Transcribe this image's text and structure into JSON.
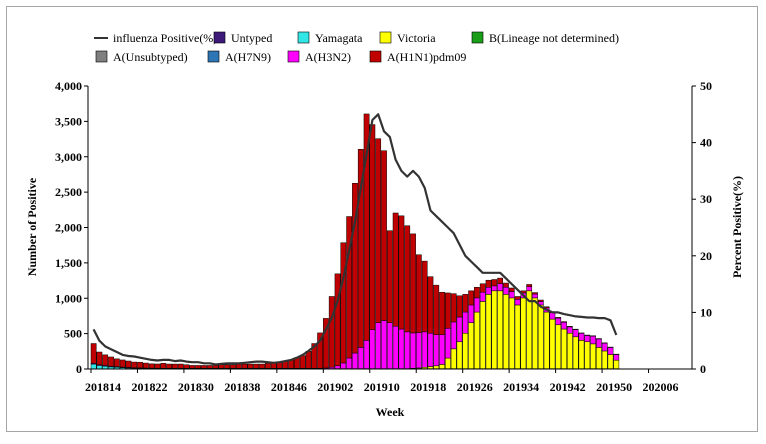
{
  "chart_data": {
    "type": "bar",
    "stacked": true,
    "xlabel": "Week",
    "ylabel": "Number of Positive",
    "y2label": "Percent Positive(%)",
    "ylim": [
      0,
      4000
    ],
    "y2lim": [
      0,
      50
    ],
    "yticks": [
      "0",
      "500",
      "1,000",
      "1,500",
      "2,000",
      "2,500",
      "3,000",
      "3,500",
      "4,000"
    ],
    "y2ticks": [
      "0",
      "10",
      "20",
      "30",
      "40",
      "50"
    ],
    "xticks": [
      "201814",
      "201822",
      "201830",
      "201838",
      "201846",
      "201902",
      "201910",
      "201918",
      "201926",
      "201934",
      "201942",
      "201950",
      "202006"
    ],
    "legend": [
      {
        "name": "influenza Positive(%)",
        "color": "#333333",
        "kind": "line"
      },
      {
        "name": "Untyped",
        "color": "#3d1a78",
        "kind": "box"
      },
      {
        "name": "Yamagata",
        "color": "#33e6e6",
        "kind": "box"
      },
      {
        "name": "Victoria",
        "color": "#ffff00",
        "kind": "box"
      },
      {
        "name": "B(Lineage not determined)",
        "color": "#1a9e1a",
        "kind": "box"
      },
      {
        "name": "A(Unsubtyped)",
        "color": "#7f7f7f",
        "kind": "box"
      },
      {
        "name": "A(H7N9)",
        "color": "#2e75b6",
        "kind": "box"
      },
      {
        "name": "A(H3N2)",
        "color": "#ff00ff",
        "kind": "box"
      },
      {
        "name": "A(H1N1)pdm09",
        "color": "#c00000",
        "kind": "box"
      }
    ],
    "stack_order": [
      "Yamagata",
      "Victoria",
      "A(H3N2)",
      "A(H1N1)pdm09"
    ],
    "series": [
      {
        "name": "Yamagata",
        "color": "#33e6e6",
        "values": [
          70,
          50,
          40,
          30,
          25,
          20,
          15,
          12,
          10,
          8,
          8,
          6,
          5,
          5,
          5,
          5,
          5,
          5,
          5,
          5,
          5,
          5,
          5,
          5,
          5,
          5,
          5,
          5,
          5,
          5,
          5,
          5,
          5,
          5,
          5,
          5,
          5,
          5,
          5,
          5,
          5,
          5,
          5,
          5,
          5,
          5,
          5,
          5,
          5,
          5,
          5,
          5,
          5,
          5,
          5,
          5,
          5,
          5,
          5,
          5,
          5,
          5,
          5,
          5,
          5,
          5,
          5,
          5,
          5,
          5,
          5,
          5,
          5,
          5,
          5,
          5,
          5,
          5,
          5,
          5,
          5,
          5,
          5,
          5,
          5,
          5,
          5,
          5,
          5,
          5,
          5
        ]
      },
      {
        "name": "Victoria",
        "color": "#ffff00",
        "values": [
          0,
          0,
          0,
          0,
          0,
          0,
          0,
          0,
          0,
          0,
          0,
          0,
          0,
          0,
          0,
          0,
          0,
          0,
          0,
          0,
          0,
          0,
          0,
          0,
          0,
          0,
          0,
          0,
          0,
          0,
          0,
          0,
          0,
          0,
          0,
          0,
          0,
          0,
          0,
          0,
          0,
          0,
          0,
          0,
          0,
          0,
          0,
          0,
          0,
          0,
          0,
          0,
          0,
          0,
          0,
          5,
          10,
          20,
          30,
          40,
          60,
          150,
          280,
          380,
          500,
          650,
          800,
          950,
          1050,
          1100,
          1100,
          1050,
          1000,
          900,
          1000,
          1100,
          1000,
          900,
          800,
          700,
          620,
          560,
          500,
          450,
          400,
          380,
          350,
          300,
          250,
          200,
          120
        ]
      },
      {
        "name": "A(H3N2)",
        "color": "#ff00ff",
        "values": [
          10,
          10,
          10,
          10,
          8,
          8,
          8,
          6,
          6,
          6,
          5,
          5,
          5,
          5,
          5,
          5,
          5,
          5,
          5,
          5,
          5,
          5,
          5,
          5,
          5,
          5,
          5,
          5,
          5,
          5,
          5,
          5,
          5,
          5,
          5,
          5,
          5,
          5,
          5,
          5,
          10,
          20,
          40,
          80,
          150,
          220,
          300,
          400,
          550,
          650,
          680,
          650,
          600,
          560,
          520,
          500,
          500,
          500,
          470,
          440,
          420,
          420,
          380,
          350,
          300,
          250,
          200,
          130,
          100,
          70,
          100,
          100,
          90,
          80,
          70,
          60,
          55,
          50,
          60,
          90,
          95,
          95,
          90,
          100,
          100,
          90,
          110,
          120,
          110,
          100,
          80
        ]
      },
      {
        "name": "A(H1N1)pdm09",
        "color": "#c00000",
        "values": [
          280,
          180,
          150,
          130,
          110,
          100,
          90,
          80,
          80,
          70,
          60,
          60,
          70,
          60,
          60,
          60,
          50,
          40,
          40,
          40,
          40,
          40,
          50,
          50,
          50,
          60,
          60,
          60,
          60,
          60,
          70,
          80,
          90,
          100,
          120,
          150,
          180,
          240,
          350,
          500,
          700,
          1000,
          1300,
          1700,
          2000,
          2400,
          2800,
          3200,
          2900,
          2600,
          2400,
          1300,
          1600,
          1600,
          1500,
          1400,
          1100,
          1000,
          800,
          700,
          600,
          500,
          400,
          300,
          250,
          200,
          150,
          120,
          100,
          90,
          80,
          60,
          50,
          40,
          30,
          30,
          20,
          20,
          15,
          15,
          10,
          10,
          8,
          8,
          5,
          5,
          5,
          5,
          5,
          5,
          5
        ]
      }
    ],
    "line": {
      "name": "influenza Positive(%)",
      "values": [
        7,
        5,
        4,
        3.5,
        3,
        2.5,
        2.3,
        2.2,
        2,
        1.8,
        1.6,
        1.5,
        1.6,
        1.6,
        1.4,
        1.5,
        1.3,
        1.2,
        1.2,
        1,
        1,
        0.8,
        0.9,
        1,
        1,
        1,
        1.1,
        1.2,
        1.3,
        1.3,
        1.2,
        1.1,
        1.2,
        1.4,
        1.6,
        2,
        2.5,
        3.2,
        4,
        5,
        7,
        9,
        12,
        16,
        21,
        26,
        32,
        38,
        44,
        45,
        42,
        41,
        37,
        35,
        34,
        35,
        34,
        32,
        28,
        27,
        26,
        25,
        24,
        22,
        20,
        19,
        18,
        17,
        17,
        17,
        17,
        16,
        15,
        14,
        13,
        12,
        12,
        11,
        10.5,
        10,
        10,
        9.7,
        9.5,
        9.3,
        9.2,
        9.1,
        9.1,
        9.0,
        9.0,
        8.6,
        6
      ]
    }
  }
}
